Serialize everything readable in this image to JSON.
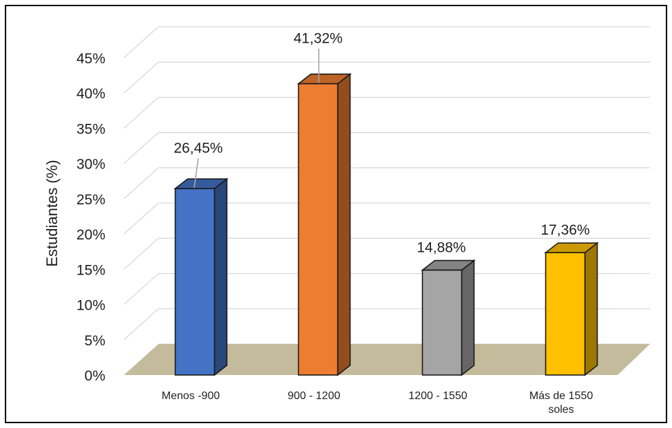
{
  "chart_data": {
    "type": "bar",
    "style": "3d-column",
    "categories": [
      "Menos -900",
      "900 - 1200",
      "1200 - 1550",
      "Más de 1550 soles"
    ],
    "category_lines": [
      [
        "Menos -900"
      ],
      [
        "900 - 1200"
      ],
      [
        "1200 - 1550"
      ],
      [
        "Más de 1550",
        "soles"
      ]
    ],
    "values": [
      26.45,
      41.32,
      14.88,
      17.36
    ],
    "data_labels": [
      "26,45%",
      "41,32%",
      "14,88%",
      "17,36%"
    ],
    "colors": [
      "#4472C4",
      "#ED7D31",
      "#A5A5A5",
      "#FFC000"
    ],
    "floor_color": "#C4BB9C",
    "title": "",
    "xlabel": "",
    "ylabel": "Estudiantes (%)",
    "ylim": [
      0,
      45
    ],
    "yticks": [
      0,
      5,
      10,
      15,
      20,
      25,
      30,
      35,
      40,
      45
    ],
    "ytick_labels": [
      "0%",
      "5%",
      "10%",
      "15%",
      "20%",
      "25%",
      "30%",
      "35%",
      "40%",
      "45%"
    ],
    "grid": true,
    "legend": "none"
  }
}
